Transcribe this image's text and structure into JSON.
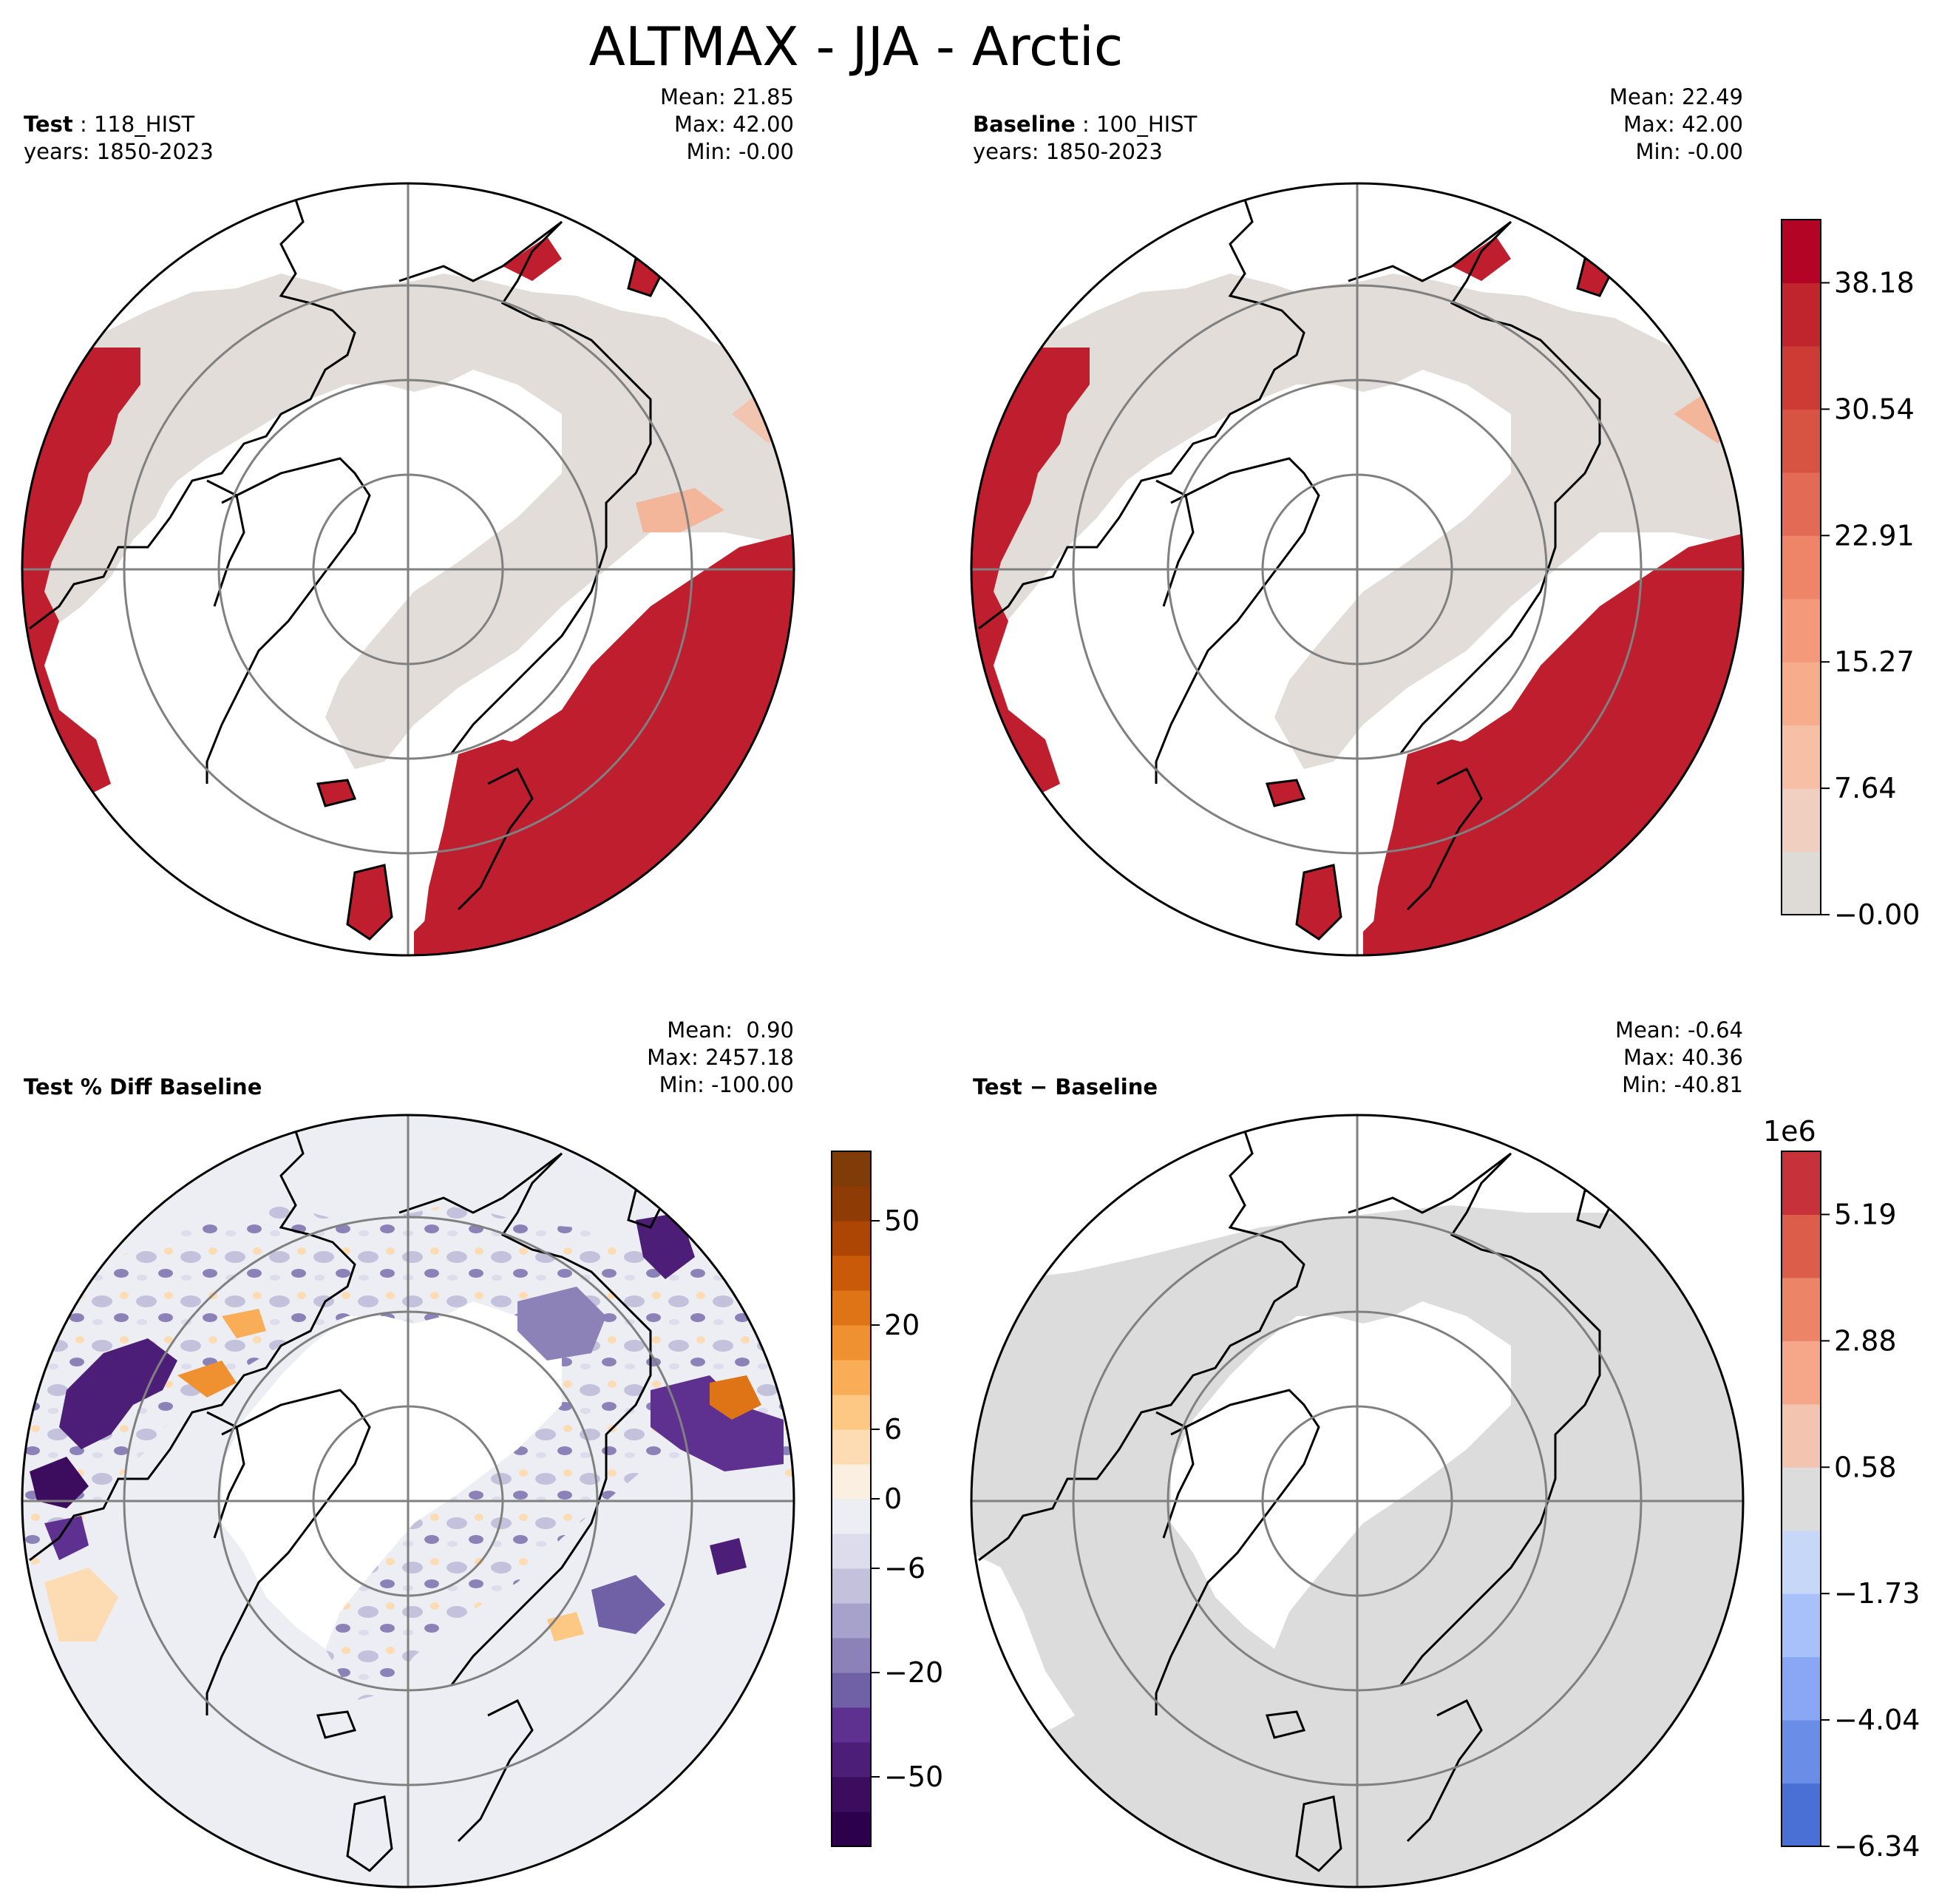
{
  "title": "ALTMAX - JJA - Arctic",
  "panels": [
    {
      "id": "test",
      "label_bold": "Test",
      "label_rest": " : 118_HIST",
      "years": "years: 1850-2023",
      "stats": [
        "Mean: 21.85",
        "Max: 42.00",
        "Min: -0.00"
      ]
    },
    {
      "id": "baseline",
      "label_bold": "Baseline",
      "label_rest": " : 100_HIST",
      "years": "years: 1850-2023",
      "stats": [
        "Mean: 22.49",
        "Max: 42.00",
        "Min: -0.00"
      ]
    },
    {
      "id": "pct-diff",
      "label_bold": "Test % Diff Baseline",
      "label_rest": "",
      "years": "",
      "stats": [
        "Mean:  0.90",
        "Max: 2457.18",
        "Min: -100.00"
      ]
    },
    {
      "id": "diff",
      "label_bold": "Test − Baseline",
      "label_rest": "",
      "years": "",
      "stats": [
        "Mean: -0.64",
        "Max: 40.36",
        "Min: -40.81"
      ]
    }
  ],
  "colorbars": {
    "main": {
      "ticks": [
        "−0.00",
        "7.64",
        "15.27",
        "22.91",
        "30.54",
        "38.18"
      ],
      "colors": [
        "#dedad6",
        "#f0cfc1",
        "#f6bfa6",
        "#f7ac8c",
        "#f49a7b",
        "#ee8468",
        "#e36a54",
        "#d85442",
        "#cd3b35",
        "#c0242c",
        "#b40426"
      ]
    },
    "pct": {
      "ticks": [
        "−50",
        "−20",
        "−6",
        "0",
        "6",
        "20",
        "50"
      ],
      "colors": [
        "#2d004b",
        "#3c0d5e",
        "#4d1e78",
        "#5e3191",
        "#7060a6",
        "#8c82b8",
        "#a7a2cb",
        "#c3c1dc",
        "#dcdced",
        "#eceef4",
        "#fbefe2",
        "#fddcb4",
        "#fdc784",
        "#f9ad57",
        "#ef9130",
        "#df7417",
        "#c95a09",
        "#ad4605",
        "#8e3b06",
        "#7f3b08"
      ]
    },
    "diff": {
      "exponent": "1e6",
      "ticks": [
        "−6.34",
        "−4.04",
        "−1.73",
        "0.58",
        "2.88",
        "5.19"
      ],
      "colors": [
        "#4a6fd5",
        "#6a8ee8",
        "#89a7f4",
        "#a8c1fa",
        "#c7d7f8",
        "#dcdcdc",
        "#f3c4b0",
        "#f6a78a",
        "#ec8468",
        "#dc5d4a",
        "#c6313a"
      ]
    }
  },
  "map_colors": {
    "test_fill": "#be1e2d",
    "baseline_fill": "#be1e2d",
    "land_low": "#e2ddd8",
    "ocean": "#ffffff",
    "pct_background": "#eceef3",
    "diff_land": "#dcdcdc"
  }
}
